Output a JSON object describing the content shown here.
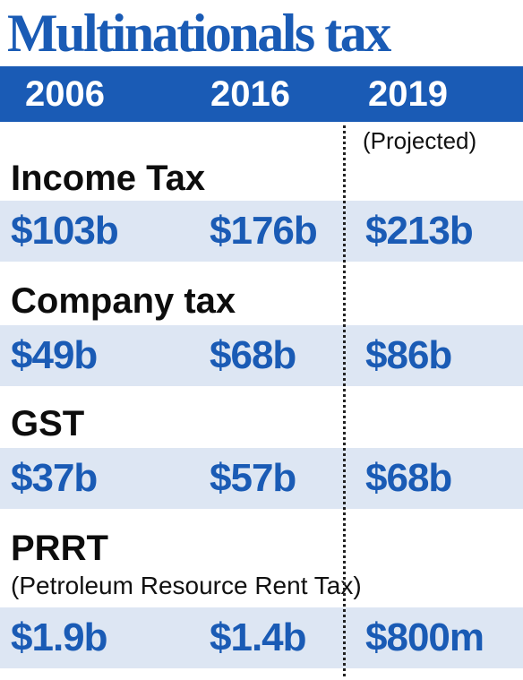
{
  "title": "Multinationals tax",
  "header": {
    "years": [
      "2006",
      "2016",
      "2019"
    ],
    "projected_note": "(Projected)"
  },
  "chart_data": {
    "type": "table",
    "title": "Multinationals tax",
    "columns": [
      "2006",
      "2016",
      "2019"
    ],
    "column_note": "(Projected)",
    "rows": [
      {
        "label": "Income Tax",
        "sublabel": "",
        "values": [
          "$103b",
          "$176b",
          "$213b"
        ]
      },
      {
        "label": "Company tax",
        "sublabel": "",
        "values": [
          "$49b",
          "$68b",
          "$86b"
        ]
      },
      {
        "label": "GST",
        "sublabel": "",
        "values": [
          "$37b",
          "$57b",
          "$68b"
        ]
      },
      {
        "label": "PRRT",
        "sublabel": "(Petroleum Resource Rent Tax)",
        "values": [
          "$1.9b",
          "$1.4b",
          "$800m"
        ]
      }
    ],
    "colors": {
      "accent": "#1a5bb5",
      "band": "#dde6f3",
      "text": "#0d0d0d"
    }
  }
}
